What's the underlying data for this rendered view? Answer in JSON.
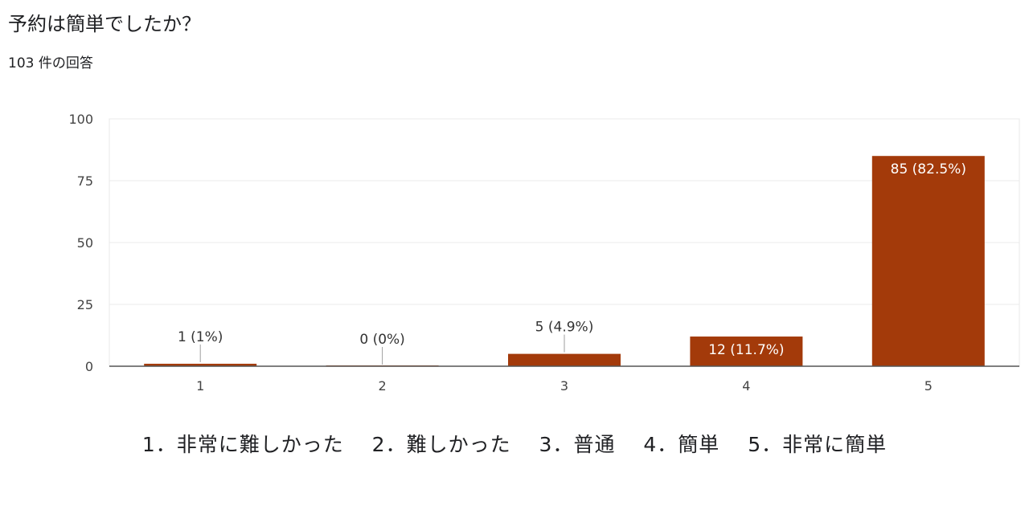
{
  "title": "予約は簡単でしたか？",
  "response_count": "103 件の回答",
  "note": "1．非常に難しかった　 2．難しかった　 3．普通　 4．簡単　 5．非常に簡単",
  "chart_data": {
    "type": "bar",
    "categories": [
      "1",
      "2",
      "3",
      "4",
      "5"
    ],
    "values": [
      1,
      0,
      5,
      12,
      85
    ],
    "data_labels": [
      "1 (1%)",
      "0 (0%)",
      "5 (4.9%)",
      "12 (11.7%)",
      "85 (82.5%)"
    ],
    "yticks": [
      "0",
      "25",
      "50",
      "75",
      "100"
    ],
    "ylim": [
      0,
      100
    ],
    "grid": true,
    "bar_color": "#a33a0a"
  }
}
